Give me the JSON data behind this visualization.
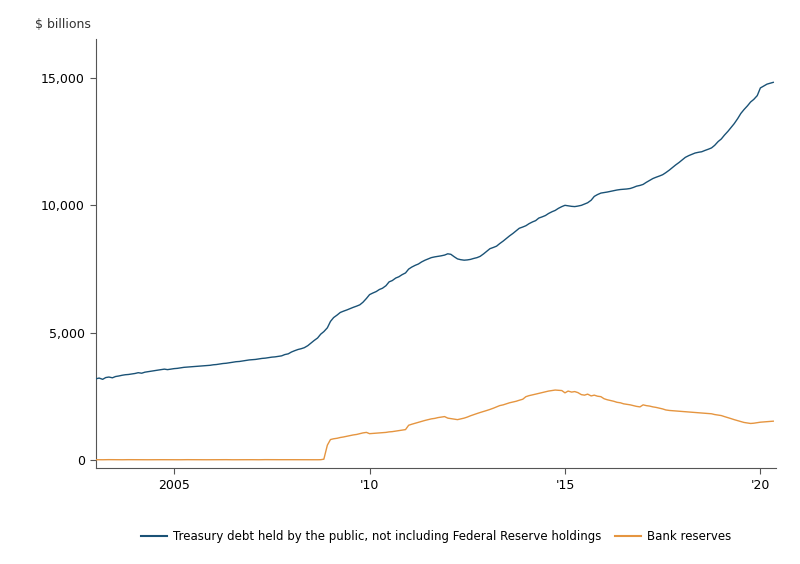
{
  "ylabel": "$ billions",
  "background_color": "#ffffff",
  "line1_color": "#1a5276",
  "line2_color": "#e59540",
  "legend_label1": "Treasury debt held by the public, not including Federal Reserve holdings",
  "legend_label2": "Bank reserves",
  "x_tick_labels": [
    "2005",
    "'10",
    "'15",
    "'20"
  ],
  "x_tick_positions": [
    2005,
    2010,
    2015,
    2020
  ],
  "ylim": [
    -300,
    16500
  ],
  "yticks": [
    0,
    5000,
    10000,
    15000
  ],
  "xlim": [
    2003.0,
    2020.4
  ],
  "spine_color": "#555555",
  "treasury_data": [
    [
      2003.0,
      3200
    ],
    [
      2003.08,
      3230
    ],
    [
      2003.17,
      3180
    ],
    [
      2003.25,
      3250
    ],
    [
      2003.33,
      3270
    ],
    [
      2003.42,
      3240
    ],
    [
      2003.5,
      3290
    ],
    [
      2003.58,
      3310
    ],
    [
      2003.67,
      3340
    ],
    [
      2003.75,
      3360
    ],
    [
      2003.83,
      3370
    ],
    [
      2003.92,
      3390
    ],
    [
      2004.0,
      3410
    ],
    [
      2004.08,
      3440
    ],
    [
      2004.17,
      3420
    ],
    [
      2004.25,
      3460
    ],
    [
      2004.33,
      3480
    ],
    [
      2004.42,
      3500
    ],
    [
      2004.5,
      3520
    ],
    [
      2004.58,
      3540
    ],
    [
      2004.67,
      3560
    ],
    [
      2004.75,
      3580
    ],
    [
      2004.83,
      3560
    ],
    [
      2004.92,
      3580
    ],
    [
      2005.0,
      3600
    ],
    [
      2005.08,
      3610
    ],
    [
      2005.17,
      3630
    ],
    [
      2005.25,
      3650
    ],
    [
      2005.33,
      3660
    ],
    [
      2005.42,
      3670
    ],
    [
      2005.5,
      3680
    ],
    [
      2005.58,
      3690
    ],
    [
      2005.67,
      3700
    ],
    [
      2005.75,
      3710
    ],
    [
      2005.83,
      3720
    ],
    [
      2005.92,
      3730
    ],
    [
      2006.0,
      3750
    ],
    [
      2006.08,
      3760
    ],
    [
      2006.17,
      3780
    ],
    [
      2006.25,
      3800
    ],
    [
      2006.33,
      3810
    ],
    [
      2006.42,
      3830
    ],
    [
      2006.5,
      3850
    ],
    [
      2006.58,
      3870
    ],
    [
      2006.67,
      3880
    ],
    [
      2006.75,
      3900
    ],
    [
      2006.83,
      3920
    ],
    [
      2006.92,
      3940
    ],
    [
      2007.0,
      3950
    ],
    [
      2007.08,
      3960
    ],
    [
      2007.17,
      3980
    ],
    [
      2007.25,
      4000
    ],
    [
      2007.33,
      4010
    ],
    [
      2007.42,
      4030
    ],
    [
      2007.5,
      4050
    ],
    [
      2007.58,
      4060
    ],
    [
      2007.67,
      4080
    ],
    [
      2007.75,
      4100
    ],
    [
      2007.83,
      4150
    ],
    [
      2007.92,
      4180
    ],
    [
      2008.0,
      4250
    ],
    [
      2008.08,
      4300
    ],
    [
      2008.17,
      4350
    ],
    [
      2008.25,
      4380
    ],
    [
      2008.33,
      4420
    ],
    [
      2008.42,
      4500
    ],
    [
      2008.5,
      4600
    ],
    [
      2008.58,
      4700
    ],
    [
      2008.67,
      4800
    ],
    [
      2008.75,
      4950
    ],
    [
      2008.83,
      5050
    ],
    [
      2008.92,
      5200
    ],
    [
      2009.0,
      5450
    ],
    [
      2009.08,
      5600
    ],
    [
      2009.17,
      5700
    ],
    [
      2009.25,
      5800
    ],
    [
      2009.33,
      5850
    ],
    [
      2009.42,
      5900
    ],
    [
      2009.5,
      5950
    ],
    [
      2009.58,
      6000
    ],
    [
      2009.67,
      6050
    ],
    [
      2009.75,
      6100
    ],
    [
      2009.83,
      6200
    ],
    [
      2009.92,
      6350
    ],
    [
      2010.0,
      6500
    ],
    [
      2010.08,
      6560
    ],
    [
      2010.17,
      6620
    ],
    [
      2010.25,
      6700
    ],
    [
      2010.33,
      6750
    ],
    [
      2010.42,
      6850
    ],
    [
      2010.5,
      7000
    ],
    [
      2010.58,
      7050
    ],
    [
      2010.67,
      7150
    ],
    [
      2010.75,
      7200
    ],
    [
      2010.83,
      7280
    ],
    [
      2010.92,
      7350
    ],
    [
      2011.0,
      7500
    ],
    [
      2011.08,
      7580
    ],
    [
      2011.17,
      7650
    ],
    [
      2011.25,
      7700
    ],
    [
      2011.33,
      7780
    ],
    [
      2011.42,
      7850
    ],
    [
      2011.5,
      7900
    ],
    [
      2011.58,
      7950
    ],
    [
      2011.67,
      7980
    ],
    [
      2011.75,
      8000
    ],
    [
      2011.83,
      8020
    ],
    [
      2011.92,
      8050
    ],
    [
      2012.0,
      8100
    ],
    [
      2012.08,
      8080
    ],
    [
      2012.17,
      7980
    ],
    [
      2012.25,
      7900
    ],
    [
      2012.33,
      7870
    ],
    [
      2012.42,
      7850
    ],
    [
      2012.5,
      7860
    ],
    [
      2012.58,
      7880
    ],
    [
      2012.67,
      7920
    ],
    [
      2012.75,
      7950
    ],
    [
      2012.83,
      8000
    ],
    [
      2012.92,
      8100
    ],
    [
      2013.0,
      8200
    ],
    [
      2013.08,
      8300
    ],
    [
      2013.17,
      8350
    ],
    [
      2013.25,
      8400
    ],
    [
      2013.33,
      8500
    ],
    [
      2013.42,
      8600
    ],
    [
      2013.5,
      8700
    ],
    [
      2013.58,
      8800
    ],
    [
      2013.67,
      8900
    ],
    [
      2013.75,
      9000
    ],
    [
      2013.83,
      9100
    ],
    [
      2013.92,
      9150
    ],
    [
      2014.0,
      9200
    ],
    [
      2014.08,
      9280
    ],
    [
      2014.17,
      9350
    ],
    [
      2014.25,
      9400
    ],
    [
      2014.33,
      9500
    ],
    [
      2014.42,
      9550
    ],
    [
      2014.5,
      9600
    ],
    [
      2014.58,
      9680
    ],
    [
      2014.67,
      9750
    ],
    [
      2014.75,
      9800
    ],
    [
      2014.83,
      9880
    ],
    [
      2014.92,
      9950
    ],
    [
      2015.0,
      10000
    ],
    [
      2015.08,
      9980
    ],
    [
      2015.17,
      9960
    ],
    [
      2015.25,
      9950
    ],
    [
      2015.33,
      9970
    ],
    [
      2015.42,
      10000
    ],
    [
      2015.5,
      10050
    ],
    [
      2015.58,
      10100
    ],
    [
      2015.67,
      10200
    ],
    [
      2015.75,
      10350
    ],
    [
      2015.83,
      10420
    ],
    [
      2015.92,
      10480
    ],
    [
      2016.0,
      10500
    ],
    [
      2016.08,
      10520
    ],
    [
      2016.17,
      10550
    ],
    [
      2016.25,
      10580
    ],
    [
      2016.33,
      10600
    ],
    [
      2016.42,
      10620
    ],
    [
      2016.5,
      10630
    ],
    [
      2016.58,
      10640
    ],
    [
      2016.67,
      10660
    ],
    [
      2016.75,
      10700
    ],
    [
      2016.83,
      10750
    ],
    [
      2016.92,
      10780
    ],
    [
      2017.0,
      10820
    ],
    [
      2017.08,
      10900
    ],
    [
      2017.17,
      10980
    ],
    [
      2017.25,
      11050
    ],
    [
      2017.33,
      11100
    ],
    [
      2017.42,
      11150
    ],
    [
      2017.5,
      11200
    ],
    [
      2017.58,
      11280
    ],
    [
      2017.67,
      11380
    ],
    [
      2017.75,
      11480
    ],
    [
      2017.83,
      11580
    ],
    [
      2017.92,
      11680
    ],
    [
      2018.0,
      11780
    ],
    [
      2018.08,
      11880
    ],
    [
      2018.17,
      11950
    ],
    [
      2018.25,
      12000
    ],
    [
      2018.33,
      12050
    ],
    [
      2018.42,
      12080
    ],
    [
      2018.5,
      12100
    ],
    [
      2018.58,
      12150
    ],
    [
      2018.67,
      12200
    ],
    [
      2018.75,
      12250
    ],
    [
      2018.83,
      12350
    ],
    [
      2018.92,
      12500
    ],
    [
      2019.0,
      12600
    ],
    [
      2019.08,
      12750
    ],
    [
      2019.17,
      12900
    ],
    [
      2019.25,
      13050
    ],
    [
      2019.33,
      13200
    ],
    [
      2019.42,
      13400
    ],
    [
      2019.5,
      13600
    ],
    [
      2019.58,
      13750
    ],
    [
      2019.67,
      13900
    ],
    [
      2019.75,
      14050
    ],
    [
      2019.83,
      14150
    ],
    [
      2019.92,
      14300
    ],
    [
      2020.0,
      14600
    ],
    [
      2020.17,
      14750
    ],
    [
      2020.33,
      14820
    ]
  ],
  "reserves_data": [
    [
      2003.0,
      30
    ],
    [
      2003.17,
      28
    ],
    [
      2003.33,
      32
    ],
    [
      2003.5,
      30
    ],
    [
      2003.67,
      28
    ],
    [
      2003.83,
      31
    ],
    [
      2004.0,
      29
    ],
    [
      2004.17,
      30
    ],
    [
      2004.33,
      28
    ],
    [
      2004.5,
      31
    ],
    [
      2004.67,
      30
    ],
    [
      2004.83,
      29
    ],
    [
      2005.0,
      30
    ],
    [
      2005.17,
      28
    ],
    [
      2005.33,
      31
    ],
    [
      2005.5,
      29
    ],
    [
      2005.67,
      30
    ],
    [
      2005.83,
      28
    ],
    [
      2006.0,
      30
    ],
    [
      2006.17,
      29
    ],
    [
      2006.33,
      31
    ],
    [
      2006.5,
      28
    ],
    [
      2006.67,
      30
    ],
    [
      2006.83,
      29
    ],
    [
      2007.0,
      30
    ],
    [
      2007.17,
      28
    ],
    [
      2007.33,
      32
    ],
    [
      2007.5,
      29
    ],
    [
      2007.67,
      30
    ],
    [
      2007.83,
      28
    ],
    [
      2008.0,
      30
    ],
    [
      2008.17,
      29
    ],
    [
      2008.33,
      31
    ],
    [
      2008.5,
      30
    ],
    [
      2008.67,
      28
    ],
    [
      2008.75,
      30
    ],
    [
      2008.83,
      50
    ],
    [
      2008.92,
      600
    ],
    [
      2009.0,
      820
    ],
    [
      2009.08,
      850
    ],
    [
      2009.17,
      870
    ],
    [
      2009.25,
      900
    ],
    [
      2009.33,
      920
    ],
    [
      2009.42,
      950
    ],
    [
      2009.5,
      980
    ],
    [
      2009.58,
      1000
    ],
    [
      2009.67,
      1020
    ],
    [
      2009.75,
      1050
    ],
    [
      2009.83,
      1080
    ],
    [
      2009.92,
      1100
    ],
    [
      2010.0,
      1050
    ],
    [
      2010.08,
      1060
    ],
    [
      2010.17,
      1070
    ],
    [
      2010.25,
      1080
    ],
    [
      2010.33,
      1090
    ],
    [
      2010.42,
      1100
    ],
    [
      2010.5,
      1120
    ],
    [
      2010.58,
      1130
    ],
    [
      2010.67,
      1150
    ],
    [
      2010.75,
      1170
    ],
    [
      2010.83,
      1190
    ],
    [
      2010.92,
      1210
    ],
    [
      2011.0,
      1380
    ],
    [
      2011.08,
      1420
    ],
    [
      2011.17,
      1460
    ],
    [
      2011.25,
      1500
    ],
    [
      2011.33,
      1530
    ],
    [
      2011.42,
      1570
    ],
    [
      2011.5,
      1600
    ],
    [
      2011.58,
      1630
    ],
    [
      2011.67,
      1650
    ],
    [
      2011.75,
      1680
    ],
    [
      2011.83,
      1700
    ],
    [
      2011.92,
      1720
    ],
    [
      2012.0,
      1660
    ],
    [
      2012.08,
      1640
    ],
    [
      2012.17,
      1620
    ],
    [
      2012.25,
      1600
    ],
    [
      2012.33,
      1630
    ],
    [
      2012.42,
      1660
    ],
    [
      2012.5,
      1700
    ],
    [
      2012.58,
      1750
    ],
    [
      2012.67,
      1800
    ],
    [
      2012.75,
      1840
    ],
    [
      2012.83,
      1880
    ],
    [
      2012.92,
      1920
    ],
    [
      2013.0,
      1960
    ],
    [
      2013.08,
      2000
    ],
    [
      2013.17,
      2050
    ],
    [
      2013.25,
      2100
    ],
    [
      2013.33,
      2150
    ],
    [
      2013.42,
      2180
    ],
    [
      2013.5,
      2220
    ],
    [
      2013.58,
      2260
    ],
    [
      2013.67,
      2290
    ],
    [
      2013.75,
      2320
    ],
    [
      2013.83,
      2360
    ],
    [
      2013.92,
      2400
    ],
    [
      2014.0,
      2500
    ],
    [
      2014.08,
      2540
    ],
    [
      2014.17,
      2570
    ],
    [
      2014.25,
      2600
    ],
    [
      2014.33,
      2630
    ],
    [
      2014.42,
      2660
    ],
    [
      2014.5,
      2690
    ],
    [
      2014.58,
      2720
    ],
    [
      2014.67,
      2740
    ],
    [
      2014.75,
      2760
    ],
    [
      2014.83,
      2750
    ],
    [
      2014.92,
      2740
    ],
    [
      2015.0,
      2650
    ],
    [
      2015.08,
      2720
    ],
    [
      2015.17,
      2680
    ],
    [
      2015.25,
      2700
    ],
    [
      2015.33,
      2660
    ],
    [
      2015.42,
      2580
    ],
    [
      2015.5,
      2560
    ],
    [
      2015.58,
      2600
    ],
    [
      2015.67,
      2530
    ],
    [
      2015.75,
      2560
    ],
    [
      2015.83,
      2520
    ],
    [
      2015.92,
      2500
    ],
    [
      2016.0,
      2420
    ],
    [
      2016.08,
      2380
    ],
    [
      2016.17,
      2350
    ],
    [
      2016.25,
      2320
    ],
    [
      2016.33,
      2280
    ],
    [
      2016.42,
      2260
    ],
    [
      2016.5,
      2220
    ],
    [
      2016.58,
      2200
    ],
    [
      2016.67,
      2180
    ],
    [
      2016.75,
      2150
    ],
    [
      2016.83,
      2120
    ],
    [
      2016.92,
      2100
    ],
    [
      2017.0,
      2180
    ],
    [
      2017.08,
      2150
    ],
    [
      2017.17,
      2130
    ],
    [
      2017.25,
      2100
    ],
    [
      2017.33,
      2080
    ],
    [
      2017.42,
      2050
    ],
    [
      2017.5,
      2020
    ],
    [
      2017.58,
      1980
    ],
    [
      2017.67,
      1960
    ],
    [
      2017.75,
      1950
    ],
    [
      2017.83,
      1940
    ],
    [
      2017.92,
      1930
    ],
    [
      2018.0,
      1920
    ],
    [
      2018.08,
      1910
    ],
    [
      2018.17,
      1900
    ],
    [
      2018.25,
      1890
    ],
    [
      2018.33,
      1880
    ],
    [
      2018.42,
      1870
    ],
    [
      2018.5,
      1860
    ],
    [
      2018.58,
      1850
    ],
    [
      2018.67,
      1840
    ],
    [
      2018.75,
      1830
    ],
    [
      2018.83,
      1800
    ],
    [
      2018.92,
      1780
    ],
    [
      2019.0,
      1760
    ],
    [
      2019.08,
      1720
    ],
    [
      2019.17,
      1680
    ],
    [
      2019.25,
      1640
    ],
    [
      2019.33,
      1600
    ],
    [
      2019.42,
      1560
    ],
    [
      2019.5,
      1520
    ],
    [
      2019.58,
      1490
    ],
    [
      2019.67,
      1470
    ],
    [
      2019.75,
      1450
    ],
    [
      2019.83,
      1460
    ],
    [
      2019.92,
      1480
    ],
    [
      2020.0,
      1500
    ],
    [
      2020.17,
      1520
    ],
    [
      2020.33,
      1540
    ]
  ]
}
